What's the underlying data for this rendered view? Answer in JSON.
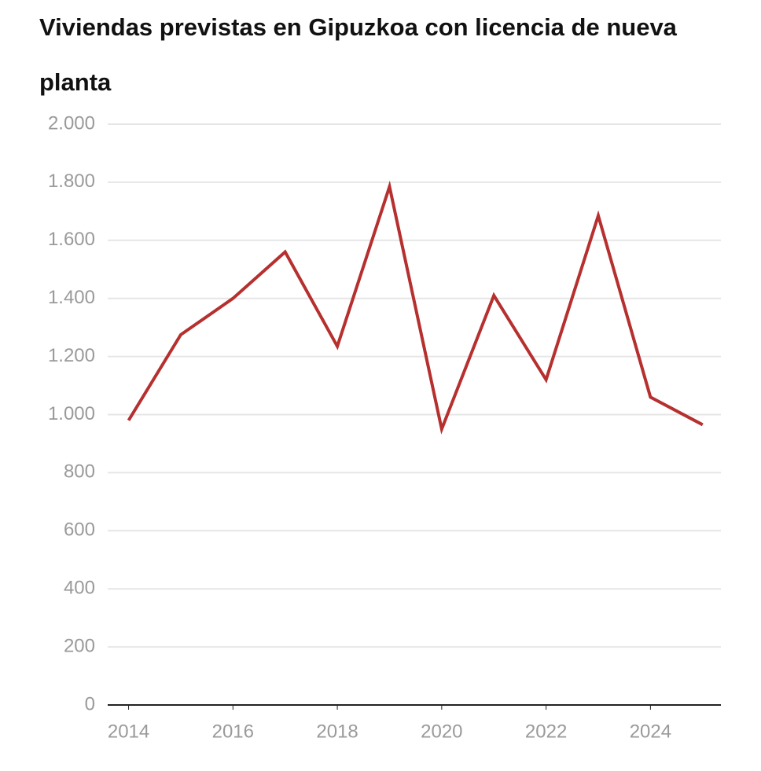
{
  "chart_data": {
    "type": "line",
    "title": "Viviendas previstas en Gipuzkoa con licencia de nueva planta",
    "x": [
      2014,
      2015,
      2016,
      2017,
      2018,
      2019,
      2020,
      2021,
      2022,
      2023,
      2024,
      2025
    ],
    "values": [
      980,
      1275,
      1400,
      1560,
      1235,
      1785,
      950,
      1410,
      1120,
      1685,
      1060,
      965
    ],
    "color": "#b5302e",
    "xlim": [
      2013.6,
      2025.35
    ],
    "xticks": [
      2014,
      2016,
      2018,
      2020,
      2022,
      2024
    ],
    "ylim": [
      0,
      2000
    ],
    "yticks": [
      0,
      200,
      400,
      600,
      800,
      {
        "value": 1000,
        "label": "1.000"
      },
      {
        "value": 1200,
        "label": "1.200"
      },
      {
        "value": 1400,
        "label": "1.400"
      },
      {
        "value": 1600,
        "label": "1.600"
      },
      {
        "value": 1800,
        "label": "1.800"
      },
      {
        "value": 2000,
        "label": "2.000"
      }
    ],
    "grid": true
  }
}
